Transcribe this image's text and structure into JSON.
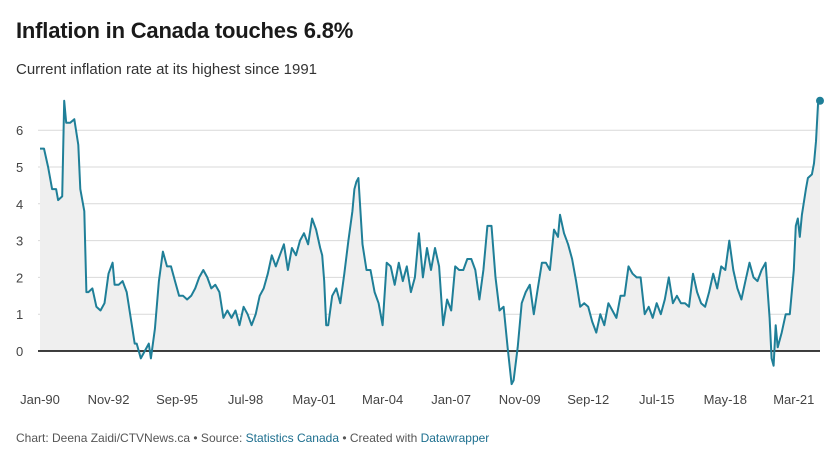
{
  "title": "Inflation in Canada touches 6.8%",
  "subtitle": "Current inflation rate at its highest since 1991",
  "footer": {
    "prefix": "Chart: Deena Zaidi/CTVNews.ca • Source: ",
    "source": "Statistics Canada",
    "middle": " • Created with ",
    "tool": "Datawrapper"
  },
  "colors": {
    "line": "#1f7f98",
    "area": "#efefef",
    "grid": "#d9d9d9",
    "zero": "#000000"
  },
  "chart_data": {
    "type": "area",
    "title": "Inflation in Canada touches 6.8%",
    "subtitle": "Current inflation rate at its highest since 1991",
    "xlabel": "",
    "ylabel": "",
    "ylim": [
      -0.9,
      7.0
    ],
    "grid": true,
    "y_ticks": [
      0,
      1,
      2,
      3,
      4,
      5,
      6
    ],
    "x_range": [
      "1990-01",
      "2022-04"
    ],
    "x_ticks": [
      {
        "label": "Jan-90",
        "date": "1990-01"
      },
      {
        "label": "Nov-92",
        "date": "1992-11"
      },
      {
        "label": "Sep-95",
        "date": "1995-09"
      },
      {
        "label": "Jul-98",
        "date": "1998-07"
      },
      {
        "label": "May-01",
        "date": "2001-05"
      },
      {
        "label": "Mar-04",
        "date": "2004-03"
      },
      {
        "label": "Jan-07",
        "date": "2007-01"
      },
      {
        "label": "Nov-09",
        "date": "2009-11"
      },
      {
        "label": "Sep-12",
        "date": "2012-09"
      },
      {
        "label": "Jul-15",
        "date": "2015-07"
      },
      {
        "label": "May-18",
        "date": "2018-05"
      },
      {
        "label": "Mar-21",
        "date": "2021-03"
      }
    ],
    "series": [
      {
        "values": [
          {
            "x": "1990-01",
            "y": 5.5
          },
          {
            "x": "1990-03",
            "y": 5.5
          },
          {
            "x": "1990-05",
            "y": 5.0
          },
          {
            "x": "1990-07",
            "y": 4.4
          },
          {
            "x": "1990-09",
            "y": 4.4
          },
          {
            "x": "1990-10",
            "y": 4.1
          },
          {
            "x": "1990-12",
            "y": 4.2
          },
          {
            "x": "1991-01",
            "y": 6.8
          },
          {
            "x": "1991-02",
            "y": 6.2
          },
          {
            "x": "1991-04",
            "y": 6.2
          },
          {
            "x": "1991-06",
            "y": 6.3
          },
          {
            "x": "1991-08",
            "y": 5.6
          },
          {
            "x": "1991-09",
            "y": 4.4
          },
          {
            "x": "1991-11",
            "y": 3.8
          },
          {
            "x": "1991-12",
            "y": 1.6
          },
          {
            "x": "1992-01",
            "y": 1.6
          },
          {
            "x": "1992-03",
            "y": 1.7
          },
          {
            "x": "1992-05",
            "y": 1.2
          },
          {
            "x": "1992-07",
            "y": 1.1
          },
          {
            "x": "1992-09",
            "y": 1.3
          },
          {
            "x": "1992-11",
            "y": 2.1
          },
          {
            "x": "1993-01",
            "y": 2.4
          },
          {
            "x": "1993-02",
            "y": 1.8
          },
          {
            "x": "1993-04",
            "y": 1.8
          },
          {
            "x": "1993-06",
            "y": 1.9
          },
          {
            "x": "1993-08",
            "y": 1.6
          },
          {
            "x": "1993-10",
            "y": 0.9
          },
          {
            "x": "1993-12",
            "y": 0.2
          },
          {
            "x": "1994-01",
            "y": 0.2
          },
          {
            "x": "1994-03",
            "y": -0.2
          },
          {
            "x": "1994-05",
            "y": 0.0
          },
          {
            "x": "1994-07",
            "y": 0.2
          },
          {
            "x": "1994-08",
            "y": -0.2
          },
          {
            "x": "1994-10",
            "y": 0.6
          },
          {
            "x": "1994-12",
            "y": 1.9
          },
          {
            "x": "1995-02",
            "y": 2.7
          },
          {
            "x": "1995-04",
            "y": 2.3
          },
          {
            "x": "1995-06",
            "y": 2.3
          },
          {
            "x": "1995-08",
            "y": 1.9
          },
          {
            "x": "1995-10",
            "y": 1.5
          },
          {
            "x": "1995-12",
            "y": 1.5
          },
          {
            "x": "1996-02",
            "y": 1.4
          },
          {
            "x": "1996-04",
            "y": 1.5
          },
          {
            "x": "1996-06",
            "y": 1.7
          },
          {
            "x": "1996-08",
            "y": 2.0
          },
          {
            "x": "1996-10",
            "y": 2.2
          },
          {
            "x": "1996-12",
            "y": 2.0
          },
          {
            "x": "1997-02",
            "y": 1.7
          },
          {
            "x": "1997-04",
            "y": 1.8
          },
          {
            "x": "1997-06",
            "y": 1.6
          },
          {
            "x": "1997-08",
            "y": 0.9
          },
          {
            "x": "1997-10",
            "y": 1.1
          },
          {
            "x": "1997-12",
            "y": 0.9
          },
          {
            "x": "1998-02",
            "y": 1.1
          },
          {
            "x": "1998-04",
            "y": 0.7
          },
          {
            "x": "1998-06",
            "y": 1.2
          },
          {
            "x": "1998-08",
            "y": 1.0
          },
          {
            "x": "1998-10",
            "y": 0.7
          },
          {
            "x": "1998-12",
            "y": 1.0
          },
          {
            "x": "1999-02",
            "y": 1.5
          },
          {
            "x": "1999-04",
            "y": 1.7
          },
          {
            "x": "1999-06",
            "y": 2.1
          },
          {
            "x": "1999-08",
            "y": 2.6
          },
          {
            "x": "1999-10",
            "y": 2.3
          },
          {
            "x": "1999-12",
            "y": 2.6
          },
          {
            "x": "2000-02",
            "y": 2.9
          },
          {
            "x": "2000-04",
            "y": 2.2
          },
          {
            "x": "2000-06",
            "y": 2.8
          },
          {
            "x": "2000-08",
            "y": 2.6
          },
          {
            "x": "2000-10",
            "y": 3.0
          },
          {
            "x": "2000-12",
            "y": 3.2
          },
          {
            "x": "2001-02",
            "y": 2.9
          },
          {
            "x": "2001-04",
            "y": 3.6
          },
          {
            "x": "2001-06",
            "y": 3.3
          },
          {
            "x": "2001-08",
            "y": 2.8
          },
          {
            "x": "2001-09",
            "y": 2.6
          },
          {
            "x": "2001-10",
            "y": 1.9
          },
          {
            "x": "2001-11",
            "y": 0.7
          },
          {
            "x": "2001-12",
            "y": 0.7
          },
          {
            "x": "2002-02",
            "y": 1.5
          },
          {
            "x": "2002-04",
            "y": 1.7
          },
          {
            "x": "2002-06",
            "y": 1.3
          },
          {
            "x": "2002-08",
            "y": 2.1
          },
          {
            "x": "2002-10",
            "y": 3.0
          },
          {
            "x": "2002-12",
            "y": 3.8
          },
          {
            "x": "2003-01",
            "y": 4.4
          },
          {
            "x": "2003-02",
            "y": 4.6
          },
          {
            "x": "2003-03",
            "y": 4.7
          },
          {
            "x": "2003-05",
            "y": 2.9
          },
          {
            "x": "2003-07",
            "y": 2.2
          },
          {
            "x": "2003-09",
            "y": 2.2
          },
          {
            "x": "2003-11",
            "y": 1.6
          },
          {
            "x": "2004-01",
            "y": 1.3
          },
          {
            "x": "2004-03",
            "y": 0.7
          },
          {
            "x": "2004-05",
            "y": 2.4
          },
          {
            "x": "2004-07",
            "y": 2.3
          },
          {
            "x": "2004-09",
            "y": 1.8
          },
          {
            "x": "2004-11",
            "y": 2.4
          },
          {
            "x": "2005-01",
            "y": 1.9
          },
          {
            "x": "2005-03",
            "y": 2.3
          },
          {
            "x": "2005-05",
            "y": 1.6
          },
          {
            "x": "2005-07",
            "y": 2.0
          },
          {
            "x": "2005-09",
            "y": 3.2
          },
          {
            "x": "2005-11",
            "y": 2.0
          },
          {
            "x": "2006-01",
            "y": 2.8
          },
          {
            "x": "2006-03",
            "y": 2.2
          },
          {
            "x": "2006-05",
            "y": 2.8
          },
          {
            "x": "2006-07",
            "y": 2.3
          },
          {
            "x": "2006-09",
            "y": 0.7
          },
          {
            "x": "2006-11",
            "y": 1.4
          },
          {
            "x": "2007-01",
            "y": 1.1
          },
          {
            "x": "2007-03",
            "y": 2.3
          },
          {
            "x": "2007-05",
            "y": 2.2
          },
          {
            "x": "2007-07",
            "y": 2.2
          },
          {
            "x": "2007-09",
            "y": 2.5
          },
          {
            "x": "2007-11",
            "y": 2.5
          },
          {
            "x": "2008-01",
            "y": 2.2
          },
          {
            "x": "2008-03",
            "y": 1.4
          },
          {
            "x": "2008-05",
            "y": 2.2
          },
          {
            "x": "2008-07",
            "y": 3.4
          },
          {
            "x": "2008-09",
            "y": 3.4
          },
          {
            "x": "2008-11",
            "y": 2.0
          },
          {
            "x": "2009-01",
            "y": 1.1
          },
          {
            "x": "2009-03",
            "y": 1.2
          },
          {
            "x": "2009-05",
            "y": 0.1
          },
          {
            "x": "2009-07",
            "y": -0.9
          },
          {
            "x": "2009-08",
            "y": -0.8
          },
          {
            "x": "2009-10",
            "y": 0.1
          },
          {
            "x": "2009-12",
            "y": 1.3
          },
          {
            "x": "2010-02",
            "y": 1.6
          },
          {
            "x": "2010-04",
            "y": 1.8
          },
          {
            "x": "2010-06",
            "y": 1.0
          },
          {
            "x": "2010-08",
            "y": 1.7
          },
          {
            "x": "2010-10",
            "y": 2.4
          },
          {
            "x": "2010-12",
            "y": 2.4
          },
          {
            "x": "2011-02",
            "y": 2.2
          },
          {
            "x": "2011-04",
            "y": 3.3
          },
          {
            "x": "2011-06",
            "y": 3.1
          },
          {
            "x": "2011-07",
            "y": 3.7
          },
          {
            "x": "2011-09",
            "y": 3.2
          },
          {
            "x": "2011-11",
            "y": 2.9
          },
          {
            "x": "2012-01",
            "y": 2.5
          },
          {
            "x": "2012-03",
            "y": 1.9
          },
          {
            "x": "2012-05",
            "y": 1.2
          },
          {
            "x": "2012-07",
            "y": 1.3
          },
          {
            "x": "2012-09",
            "y": 1.2
          },
          {
            "x": "2012-11",
            "y": 0.8
          },
          {
            "x": "2013-01",
            "y": 0.5
          },
          {
            "x": "2013-03",
            "y": 1.0
          },
          {
            "x": "2013-05",
            "y": 0.7
          },
          {
            "x": "2013-07",
            "y": 1.3
          },
          {
            "x": "2013-09",
            "y": 1.1
          },
          {
            "x": "2013-11",
            "y": 0.9
          },
          {
            "x": "2014-01",
            "y": 1.5
          },
          {
            "x": "2014-03",
            "y": 1.5
          },
          {
            "x": "2014-05",
            "y": 2.3
          },
          {
            "x": "2014-07",
            "y": 2.1
          },
          {
            "x": "2014-09",
            "y": 2.0
          },
          {
            "x": "2014-11",
            "y": 2.0
          },
          {
            "x": "2015-01",
            "y": 1.0
          },
          {
            "x": "2015-03",
            "y": 1.2
          },
          {
            "x": "2015-05",
            "y": 0.9
          },
          {
            "x": "2015-07",
            "y": 1.3
          },
          {
            "x": "2015-09",
            "y": 1.0
          },
          {
            "x": "2015-11",
            "y": 1.4
          },
          {
            "x": "2016-01",
            "y": 2.0
          },
          {
            "x": "2016-03",
            "y": 1.3
          },
          {
            "x": "2016-05",
            "y": 1.5
          },
          {
            "x": "2016-07",
            "y": 1.3
          },
          {
            "x": "2016-09",
            "y": 1.3
          },
          {
            "x": "2016-11",
            "y": 1.2
          },
          {
            "x": "2017-01",
            "y": 2.1
          },
          {
            "x": "2017-03",
            "y": 1.6
          },
          {
            "x": "2017-05",
            "y": 1.3
          },
          {
            "x": "2017-07",
            "y": 1.2
          },
          {
            "x": "2017-09",
            "y": 1.6
          },
          {
            "x": "2017-11",
            "y": 2.1
          },
          {
            "x": "2018-01",
            "y": 1.7
          },
          {
            "x": "2018-03",
            "y": 2.3
          },
          {
            "x": "2018-05",
            "y": 2.2
          },
          {
            "x": "2018-07",
            "y": 3.0
          },
          {
            "x": "2018-09",
            "y": 2.2
          },
          {
            "x": "2018-11",
            "y": 1.7
          },
          {
            "x": "2019-01",
            "y": 1.4
          },
          {
            "x": "2019-03",
            "y": 1.9
          },
          {
            "x": "2019-05",
            "y": 2.4
          },
          {
            "x": "2019-07",
            "y": 2.0
          },
          {
            "x": "2019-09",
            "y": 1.9
          },
          {
            "x": "2019-11",
            "y": 2.2
          },
          {
            "x": "2020-01",
            "y": 2.4
          },
          {
            "x": "2020-03",
            "y": 0.9
          },
          {
            "x": "2020-04",
            "y": -0.2
          },
          {
            "x": "2020-05",
            "y": -0.4
          },
          {
            "x": "2020-06",
            "y": 0.7
          },
          {
            "x": "2020-07",
            "y": 0.1
          },
          {
            "x": "2020-09",
            "y": 0.5
          },
          {
            "x": "2020-11",
            "y": 1.0
          },
          {
            "x": "2021-01",
            "y": 1.0
          },
          {
            "x": "2021-03",
            "y": 2.2
          },
          {
            "x": "2021-04",
            "y": 3.4
          },
          {
            "x": "2021-05",
            "y": 3.6
          },
          {
            "x": "2021-06",
            "y": 3.1
          },
          {
            "x": "2021-07",
            "y": 3.7
          },
          {
            "x": "2021-09",
            "y": 4.4
          },
          {
            "x": "2021-10",
            "y": 4.7
          },
          {
            "x": "2021-12",
            "y": 4.8
          },
          {
            "x": "2022-01",
            "y": 5.1
          },
          {
            "x": "2022-02",
            "y": 5.7
          },
          {
            "x": "2022-03",
            "y": 6.7
          },
          {
            "x": "2022-04",
            "y": 6.8
          }
        ]
      }
    ]
  }
}
